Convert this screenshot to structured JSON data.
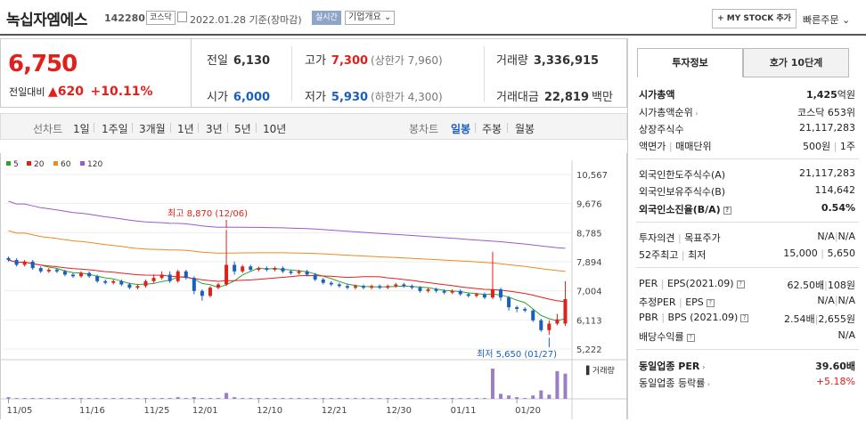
{
  "header": {
    "name": "녹십자엠에스",
    "code": "142280",
    "market": "코스닥",
    "date": "2022.01.28 기준(장마감)",
    "live": "실시간",
    "company_info": "기업개요",
    "mystock": "+ MY STOCK 추가",
    "quick_order": "빠른주문"
  },
  "price": {
    "current": "6,750",
    "change_label": "전일대비",
    "change_arrow": "▲",
    "change": "620",
    "change_pct": "+10.11%"
  },
  "summary": {
    "prev_label": "전일",
    "prev": "6,130",
    "high_label": "고가",
    "high": "7,300",
    "upper_limit": "(상한가 7,960)",
    "volume_label": "거래량",
    "volume": "3,336,915",
    "open_label": "시가",
    "open": "6,000",
    "low_label": "저가",
    "low": "5,930",
    "lower_limit": "(하한가 4,300)",
    "amount_label": "거래대금",
    "amount": "22,819",
    "amount_unit": "백만"
  },
  "period_tabs": {
    "label": "선차트",
    "items": [
      "1일",
      "1주일",
      "3개월",
      "1년",
      "3년",
      "5년",
      "10년"
    ]
  },
  "candle_tabs": {
    "label": "봉차트",
    "items": [
      "일봉",
      "주봉",
      "월봉"
    ],
    "selected": "일봉"
  },
  "chart_data": {
    "type": "candlestick",
    "legend": [
      {
        "name": "5",
        "color": "#2ea12e"
      },
      {
        "name": "20",
        "color": "#e2201b"
      },
      {
        "name": "60",
        "color": "#f08a1c"
      },
      {
        "name": "120",
        "color": "#9b59c9"
      }
    ],
    "y_ticks": [
      "10,567",
      "9,676",
      "8,785",
      "7,894",
      "7,004",
      "6,113",
      "5,222"
    ],
    "ylim": [
      5222,
      10567
    ],
    "x_ticks": [
      "11/05",
      "11/16",
      "11/25",
      "12/01",
      "12/10",
      "12/21",
      "12/30",
      "01/11",
      "01/20"
    ],
    "annot_high": "최고 8,870 (12/06)",
    "annot_low": "최저 5,650 (01/27)",
    "volume_label": "거래량",
    "candles": [
      [
        8010,
        7950,
        8050,
        7900
      ],
      [
        7950,
        7800,
        8000,
        7750
      ],
      [
        7800,
        7900,
        7950,
        7750
      ],
      [
        7900,
        7700,
        7950,
        7650
      ],
      [
        7700,
        7600,
        7750,
        7550
      ],
      [
        7600,
        7650,
        7700,
        7550
      ],
      [
        7650,
        7600,
        7700,
        7550
      ],
      [
        7600,
        7500,
        7650,
        7450
      ],
      [
        7500,
        7450,
        7550,
        7400
      ],
      [
        7450,
        7550,
        7600,
        7400
      ],
      [
        7550,
        7450,
        7600,
        7400
      ],
      [
        7450,
        7300,
        7500,
        7250
      ],
      [
        7300,
        7250,
        7350,
        7200
      ],
      [
        7250,
        7300,
        7350,
        7200
      ],
      [
        7300,
        7200,
        7350,
        7150
      ],
      [
        7200,
        7100,
        7250,
        7050
      ],
      [
        7100,
        7150,
        7200,
        7050
      ],
      [
        7150,
        7300,
        7350,
        7100
      ],
      [
        7300,
        7400,
        7500,
        7250
      ],
      [
        7400,
        7500,
        7600,
        7350
      ],
      [
        7500,
        7300,
        7600,
        7250
      ],
      [
        7300,
        7600,
        7650,
        7250
      ],
      [
        7600,
        7400,
        7650,
        7350
      ],
      [
        7400,
        7000,
        7450,
        6900
      ],
      [
        7000,
        6850,
        7050,
        6700
      ],
      [
        6850,
        7100,
        7150,
        6800
      ],
      [
        7100,
        7200,
        7250,
        7050
      ],
      [
        7200,
        7800,
        8870,
        7150
      ],
      [
        7800,
        7600,
        7900,
        7500
      ],
      [
        7600,
        7750,
        7800,
        7550
      ],
      [
        7750,
        7650,
        7800,
        7600
      ],
      [
        7650,
        7700,
        7750,
        7600
      ],
      [
        7700,
        7650,
        7750,
        7600
      ],
      [
        7650,
        7700,
        7750,
        7600
      ],
      [
        7700,
        7600,
        7750,
        7550
      ],
      [
        7600,
        7550,
        7650,
        7500
      ],
      [
        7550,
        7600,
        7650,
        7500
      ],
      [
        7600,
        7500,
        7650,
        7450
      ],
      [
        7500,
        7350,
        7550,
        7300
      ],
      [
        7350,
        7250,
        7400,
        7200
      ],
      [
        7250,
        7200,
        7300,
        7150
      ],
      [
        7200,
        7150,
        7250,
        7100
      ],
      [
        7150,
        7100,
        7200,
        7050
      ],
      [
        7100,
        7150,
        7200,
        7050
      ],
      [
        7150,
        7100,
        7200,
        7050
      ],
      [
        7100,
        7150,
        7200,
        7050
      ],
      [
        7150,
        7100,
        7200,
        7050
      ],
      [
        7100,
        7150,
        7200,
        7050
      ],
      [
        7150,
        7200,
        7250,
        7100
      ],
      [
        7200,
        7150,
        7250,
        7100
      ],
      [
        7150,
        7100,
        7200,
        7050
      ],
      [
        7100,
        7000,
        7150,
        6950
      ],
      [
        7000,
        7050,
        7100,
        6950
      ],
      [
        7050,
        7000,
        7100,
        6950
      ],
      [
        7000,
        6950,
        7050,
        6900
      ],
      [
        6950,
        7000,
        7050,
        6900
      ],
      [
        7000,
        6900,
        7050,
        6850
      ],
      [
        6900,
        6850,
        6950,
        6800
      ],
      [
        6850,
        6900,
        6950,
        6800
      ],
      [
        6900,
        6800,
        6950,
        6750
      ],
      [
        6800,
        7050,
        8200,
        6750
      ],
      [
        7050,
        6800,
        7100,
        6700
      ],
      [
        6800,
        6500,
        6850,
        6400
      ],
      [
        6500,
        6450,
        6550,
        6350
      ],
      [
        6450,
        6400,
        6500,
        6350
      ],
      [
        6400,
        6100,
        6450,
        6050
      ],
      [
        6100,
        5800,
        6150,
        5750
      ],
      [
        5800,
        6000,
        6100,
        5650
      ],
      [
        6000,
        6130,
        6300,
        5950
      ],
      [
        6000,
        6750,
        7300,
        5930
      ]
    ],
    "volumes": [
      2,
      1,
      1,
      1,
      1,
      1,
      1,
      1,
      1,
      1,
      1,
      1,
      1,
      1,
      1,
      1,
      1,
      1,
      1,
      1,
      1,
      2,
      1,
      2,
      1,
      1,
      1,
      7,
      2,
      1,
      1,
      1,
      1,
      1,
      1,
      1,
      1,
      1,
      1,
      1,
      1,
      1,
      1,
      1,
      1,
      1,
      1,
      1,
      1,
      1,
      1,
      1,
      1,
      1,
      1,
      1,
      1,
      1,
      1,
      1,
      36,
      6,
      4,
      2,
      1,
      4,
      10,
      5,
      33,
      30
    ]
  },
  "invest": {
    "tab_on": "투자정보",
    "tab_off": "호가 10단계",
    "market_cap_label": "시가총액",
    "market_cap": "1,425",
    "market_cap_unit": "억원",
    "rank_label": "시가총액순위",
    "rank": "코스닥 653위",
    "shares_label": "상장주식수",
    "shares": "21,117,283",
    "par_label": "액면가",
    "unit_label": "매매단위",
    "par": "500원",
    "unit": "1주",
    "foreign_limit_label": "외국인한도주식수(A)",
    "foreign_limit": "21,117,283",
    "foreign_hold_label": "외국인보유주식수(B)",
    "foreign_hold": "114,642",
    "foreign_ratio_label": "외국인소진율(B/A)",
    "foreign_ratio": "0.54%",
    "opinion_label": "투자의견",
    "target_label": "목표주가",
    "opinion": "N/A",
    "target": "N/A",
    "w52_high_label": "52주최고",
    "w52_low_label": "최저",
    "w52_high": "15,000",
    "w52_low": "5,650",
    "per_label": "PER",
    "eps_label": "EPS(2021.09)",
    "per": "62.50배",
    "eps": "108원",
    "est_per_label": "추정PER",
    "est_eps_label": "EPS",
    "est_per": "N/A",
    "est_eps": "N/A",
    "pbr_label": "PBR",
    "bps_label": "BPS (2021.09)",
    "pbr": "2.54배",
    "bps": "2,655원",
    "div_label": "배당수익률",
    "div": "N/A",
    "ind_per_label": "동일업종 PER",
    "ind_per": "39.60배",
    "ind_chg_label": "동일업종 등락률",
    "ind_chg": "+5.18%"
  }
}
